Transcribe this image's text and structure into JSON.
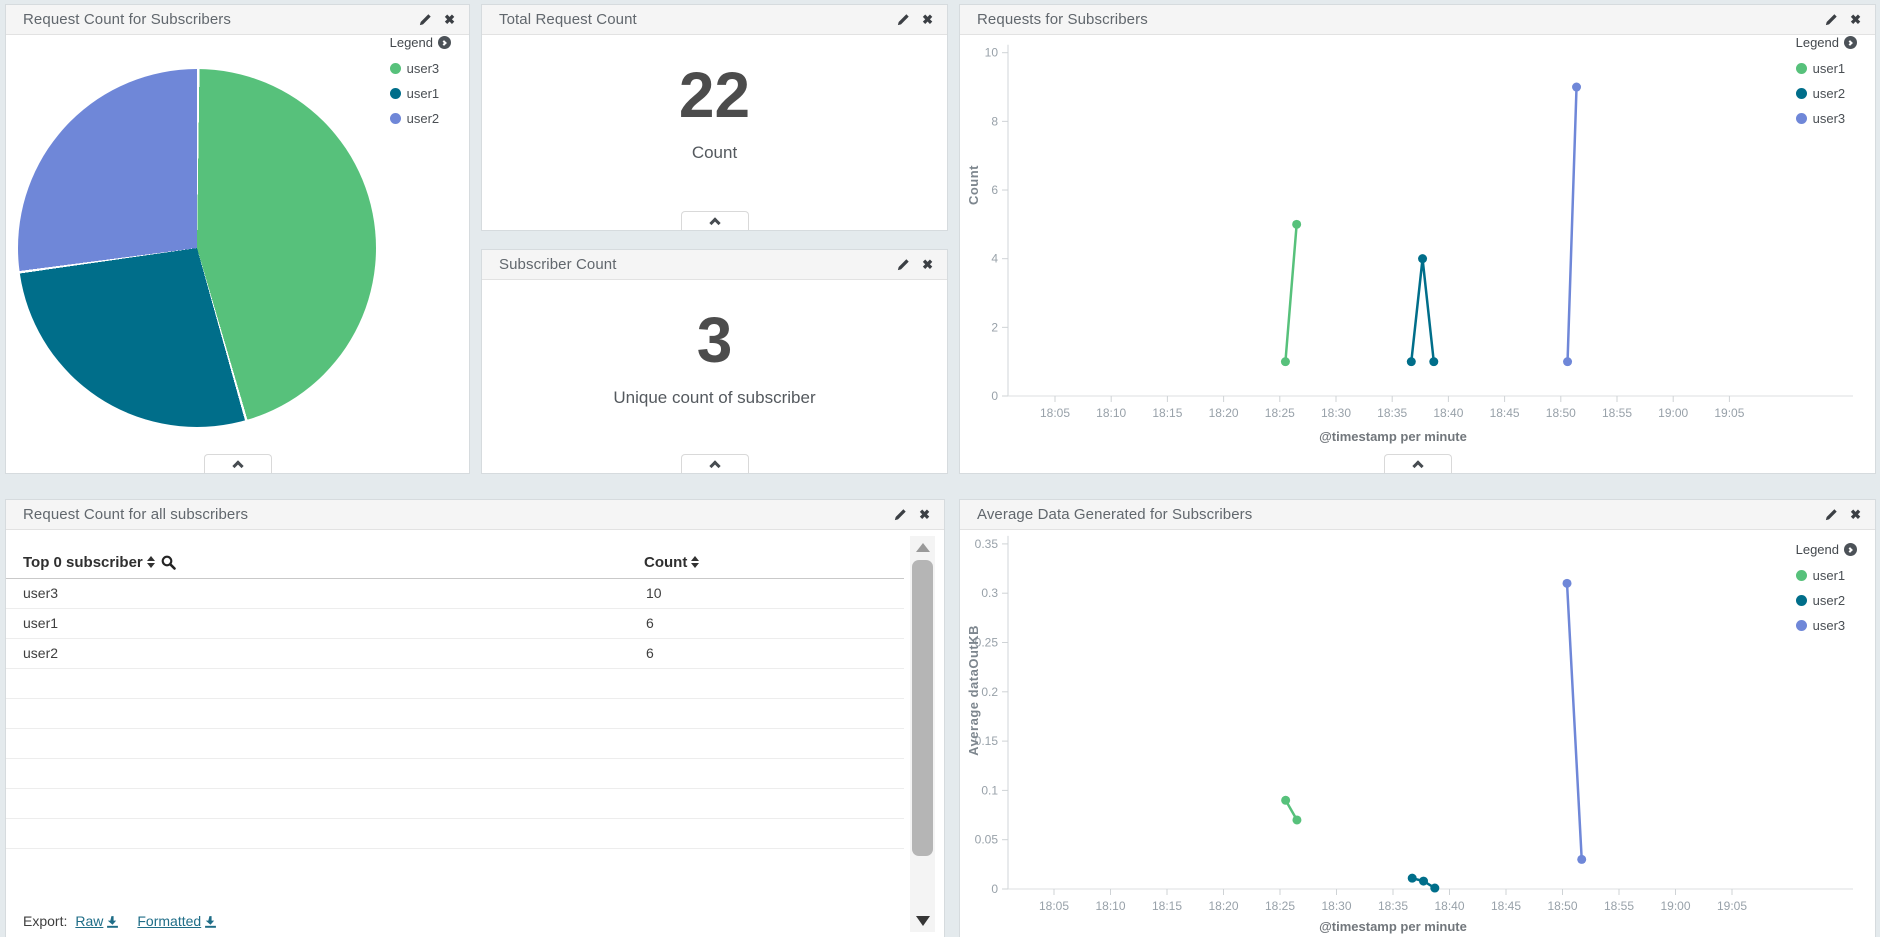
{
  "palette": [
    "#57c17b",
    "#006e8a",
    "#6f87d8"
  ],
  "panels": {
    "pie": {
      "title": "Request Count for Subscribers",
      "legend_label": "Legend"
    },
    "total_requests": {
      "title": "Total Request Count",
      "value": "22",
      "label": "Count"
    },
    "subscriber_count": {
      "title": "Subscriber Count",
      "value": "3",
      "label": "Unique count of subscriber"
    },
    "requests_chart": {
      "title": "Requests for Subscribers",
      "legend_label": "Legend"
    },
    "table": {
      "title": "Request Count for all subscribers",
      "col1": "Top 0 subscriber",
      "col2": "Count",
      "rows": [
        {
          "subscriber": "user3",
          "count": "10"
        },
        {
          "subscriber": "user1",
          "count": "6"
        },
        {
          "subscriber": "user2",
          "count": "6"
        }
      ],
      "export_label": "Export:",
      "raw_label": "Raw",
      "formatted_label": "Formatted"
    },
    "avg_chart": {
      "title": "Average Data Generated for Subscribers",
      "legend_label": "Legend"
    }
  },
  "chart_data": [
    {
      "type": "pie",
      "title": "Request Count for Subscribers",
      "total": 22,
      "series": [
        {
          "name": "user3",
          "value": 10
        },
        {
          "name": "user1",
          "value": 6
        },
        {
          "name": "user2",
          "value": 6
        }
      ]
    },
    {
      "type": "line",
      "title": "Requests for Subscribers",
      "xlabel": "@timestamp per minute",
      "ylabel": "Count",
      "ylim": [
        0,
        10
      ],
      "grid": false,
      "legend_position": "top-right",
      "y_ticks": [
        {
          "label": "0",
          "v": 0
        },
        {
          "label": "2",
          "v": 2
        },
        {
          "label": "4",
          "v": 4
        },
        {
          "label": "6",
          "v": 6
        },
        {
          "label": "8",
          "v": 8
        },
        {
          "label": "10",
          "v": 10
        }
      ],
      "x_ticks": [
        "18:05",
        "18:10",
        "18:15",
        "18:20",
        "18:25",
        "18:30",
        "18:35",
        "18:40",
        "18:45",
        "18:50",
        "18:55",
        "19:00",
        "19:05"
      ],
      "series": [
        {
          "name": "user1",
          "points": [
            {
              "t": "18:25",
              "m": 25.5,
              "v": 1
            },
            {
              "t": "18:26",
              "m": 26.5,
              "v": 5
            }
          ]
        },
        {
          "name": "user2",
          "points": [
            {
              "t": "18:36",
              "m": 36.7,
              "v": 1
            },
            {
              "t": "18:37",
              "m": 37.7,
              "v": 4
            },
            {
              "t": "18:38",
              "m": 38.7,
              "v": 1
            }
          ]
        },
        {
          "name": "user3",
          "points": [
            {
              "t": "18:50",
              "m": 50.6,
              "v": 1
            },
            {
              "t": "18:51",
              "m": 51.4,
              "v": 9
            }
          ]
        }
      ]
    },
    {
      "type": "line",
      "title": "Average Data Generated for Subscribers",
      "xlabel": "@timestamp per minute",
      "ylabel": "Average dataOutKB",
      "ylim": [
        0,
        0.35
      ],
      "grid": false,
      "legend_position": "top-right",
      "y_ticks": [
        {
          "label": "0",
          "v": 0
        },
        {
          "label": "0.05",
          "v": 0.05
        },
        {
          "label": "0.1",
          "v": 0.1
        },
        {
          "label": "0.15",
          "v": 0.15
        },
        {
          "label": "0.2",
          "v": 0.2
        },
        {
          "label": "0.25",
          "v": 0.25
        },
        {
          "label": "0.3",
          "v": 0.3
        },
        {
          "label": "0.35",
          "v": 0.35
        }
      ],
      "x_ticks": [
        "18:05",
        "18:10",
        "18:15",
        "18:20",
        "18:25",
        "18:30",
        "18:35",
        "18:40",
        "18:45",
        "18:50",
        "18:55",
        "19:00",
        "19:05"
      ],
      "series": [
        {
          "name": "user1",
          "points": [
            {
              "t": "18:25",
              "m": 25.5,
              "v": 0.09
            },
            {
              "t": "18:26",
              "m": 26.5,
              "v": 0.07
            }
          ]
        },
        {
          "name": "user2",
          "points": [
            {
              "t": "18:36",
              "m": 36.7,
              "v": 0.011
            },
            {
              "t": "18:37",
              "m": 37.7,
              "v": 0.008
            },
            {
              "t": "18:38",
              "m": 38.7,
              "v": 0.001
            }
          ]
        },
        {
          "name": "user3",
          "points": [
            {
              "t": "18:50",
              "m": 50.4,
              "v": 0.31
            },
            {
              "t": "18:52",
              "m": 51.7,
              "v": 0.03
            }
          ]
        }
      ]
    },
    {
      "type": "table",
      "title": "Request Count for all subscribers",
      "columns": [
        "Top 0 subscriber",
        "Count"
      ],
      "rows": [
        [
          "user3",
          10
        ],
        [
          "user1",
          6
        ],
        [
          "user2",
          6
        ]
      ]
    }
  ]
}
